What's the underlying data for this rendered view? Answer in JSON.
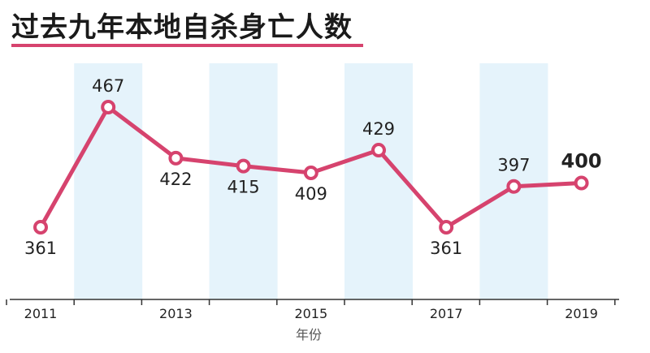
{
  "chart_data": {
    "type": "line",
    "title": "过去九年本地自杀身亡人数",
    "xlabel": "年份",
    "ylabel": "",
    "x": [
      2011,
      2012,
      2013,
      2014,
      2015,
      2016,
      2017,
      2018,
      2019
    ],
    "values": [
      361,
      467,
      422,
      415,
      409,
      429,
      361,
      397,
      400
    ],
    "value_labels": [
      "361",
      "467",
      "422",
      "415",
      "409",
      "429",
      "361",
      "397",
      "400"
    ],
    "x_tick_labels": [
      "2011",
      "2013",
      "2015",
      "2017",
      "2019"
    ],
    "highlight_last_value": true,
    "shaded_columns": [
      2012,
      2014,
      2016,
      2018
    ],
    "line_color": "#d6436e",
    "shade_color": "#e5f3fb",
    "accent_color": "#d6436e",
    "grid": false,
    "legend": "none"
  }
}
